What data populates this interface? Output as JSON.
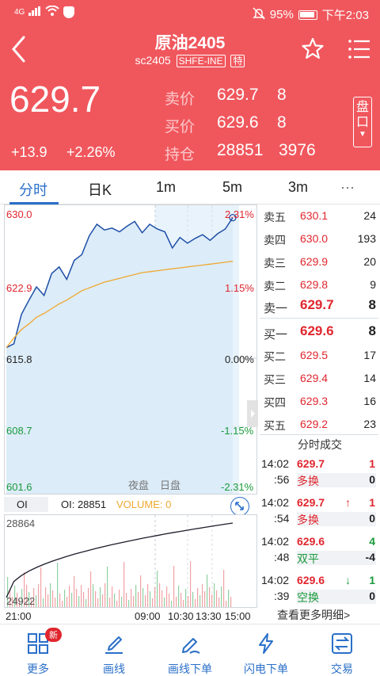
{
  "status_bar": {
    "network": "4G",
    "battery": "95%",
    "time": "下午2:03"
  },
  "header": {
    "title": "原油2405",
    "code": "sc2405",
    "exchange": "SHFE-INE",
    "special_tag": "特",
    "last_price": "629.7",
    "change": "+13.9",
    "change_pct": "+2.26%",
    "ask_label": "卖价",
    "ask_price": "629.7",
    "ask_vol": "8",
    "bid_label": "买价",
    "bid_price": "629.6",
    "bid_vol": "8",
    "oi_label": "持仓",
    "oi_value": "28851",
    "oi_change": "3976",
    "pankou_label": "盘口"
  },
  "tabs": [
    "分时",
    "日K",
    "1m",
    "5m",
    "3m",
    "···"
  ],
  "chart": {
    "price_labels": [
      "630.0",
      "622.9",
      "615.8",
      "608.7",
      "601.6"
    ],
    "pct_labels": [
      "2.31%",
      "1.15%",
      "0.00%",
      "-1.15%",
      "-2.31%"
    ],
    "sessions": [
      "夜盘",
      "日盘"
    ]
  },
  "oi_chart": {
    "tab": "OI",
    "oi_text": "OI: 28851",
    "volume_text": "VOLUME: 0",
    "max_label": "28864",
    "min_label": "24922",
    "time_labels": [
      "21:00",
      "09:00",
      "10:30",
      "13:30",
      "15:00"
    ]
  },
  "chart_data": {
    "type": "line",
    "ylim": [
      601.6,
      630.0
    ],
    "series": [
      {
        "values": [
          616.0,
          616.4,
          619.5,
          621.0,
          622.4,
          621.5,
          623.8,
          624.5,
          623.2,
          625.2,
          625.8,
          627.8,
          629.0,
          628.4,
          628.6,
          628.2,
          628.8,
          629.3,
          628.1,
          629.0,
          628.5,
          628.2,
          626.5,
          627.6,
          627.0,
          627.5,
          627.9,
          627.3,
          628.0,
          628.5,
          629.7
        ]
      },
      {
        "values": [
          616.0,
          617.0,
          617.9,
          618.5,
          619.2,
          619.6,
          620.1,
          620.6,
          621.0,
          621.5,
          622.0,
          622.3,
          622.6,
          622.9,
          623.1,
          623.3,
          623.5,
          623.7,
          623.9,
          624.0,
          624.1,
          624.2,
          624.3,
          624.4,
          624.5,
          624.6,
          624.7,
          624.8,
          624.9,
          625.0,
          625.1
        ]
      }
    ]
  },
  "orderbook": {
    "asks": [
      {
        "label": "卖五",
        "price": "630.1",
        "vol": "24"
      },
      {
        "label": "卖四",
        "price": "630.0",
        "vol": "193"
      },
      {
        "label": "卖三",
        "price": "629.9",
        "vol": "20"
      },
      {
        "label": "卖二",
        "price": "629.8",
        "vol": "9"
      },
      {
        "label": "卖一",
        "price": "629.7",
        "vol": "8"
      }
    ],
    "bids": [
      {
        "label": "买一",
        "price": "629.6",
        "vol": "8"
      },
      {
        "label": "买二",
        "price": "629.5",
        "vol": "17"
      },
      {
        "label": "买三",
        "price": "629.4",
        "vol": "14"
      },
      {
        "label": "买四",
        "price": "629.3",
        "vol": "16"
      },
      {
        "label": "买五",
        "price": "629.2",
        "vol": "23"
      }
    ]
  },
  "trades": {
    "title": "分时成交",
    "items": [
      {
        "time": "14:02",
        "sec": ":56",
        "price": "629.7",
        "type": "多换",
        "arrow": "",
        "vol": "1",
        "oi": "0",
        "dir": "red"
      },
      {
        "time": "14:02",
        "sec": ":54",
        "price": "629.7",
        "type": "多换",
        "arrow": "↑",
        "vol": "1",
        "oi": "0",
        "dir": "red"
      },
      {
        "time": "14:02",
        "sec": ":48",
        "price": "629.6",
        "type": "双平",
        "arrow": "",
        "vol": "4",
        "oi": "-4",
        "dir": "green"
      },
      {
        "time": "14:02",
        "sec": ":39",
        "price": "629.6",
        "type": "空换",
        "arrow": "↓",
        "vol": "1",
        "oi": "0",
        "dir": "green"
      }
    ],
    "more": "查看更多明细>"
  },
  "bottom_bar": {
    "items": [
      "更多",
      "画线",
      "画线下单",
      "闪电下单",
      "交易"
    ],
    "badge": "新"
  }
}
